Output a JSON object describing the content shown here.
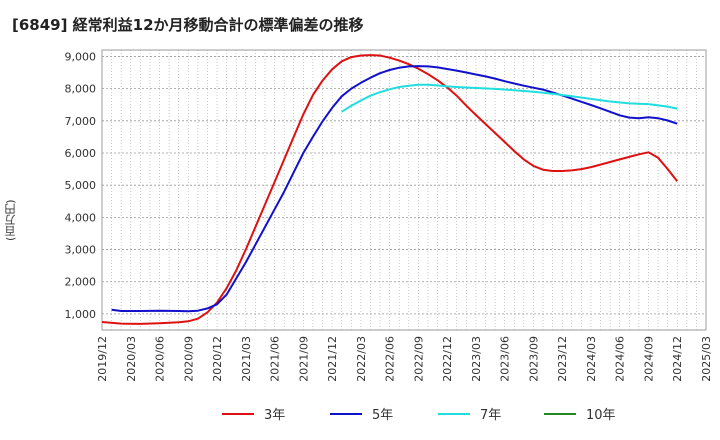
{
  "chart_data": {
    "type": "line",
    "title": "[6849]  経常利益12か月移動合計の標準偏差の推移",
    "ylabel": "(百万円)",
    "xlabel": "",
    "xlim": [
      "2019-12",
      "2025-03"
    ],
    "ylim": [
      500,
      9200
    ],
    "yticks": [
      1000,
      2000,
      3000,
      4000,
      5000,
      6000,
      7000,
      8000,
      9000
    ],
    "ytick_labels": [
      "1,000",
      "2,000",
      "3,000",
      "4,000",
      "5,000",
      "6,000",
      "7,000",
      "8,000",
      "9,000"
    ],
    "xtick_labels": [
      "2019/12",
      "2020/03",
      "2020/06",
      "2020/09",
      "2020/12",
      "2021/03",
      "2021/06",
      "2021/09",
      "2021/12",
      "2022/03",
      "2022/06",
      "2022/09",
      "2022/12",
      "2023/03",
      "2023/06",
      "2023/09",
      "2023/12",
      "2024/03",
      "2024/06",
      "2024/09",
      "2024/12",
      "2025/03"
    ],
    "grid": true,
    "legend_position": "bottom",
    "series": [
      {
        "name": "3年",
        "color": "#dd1111",
        "x": [
          "2019-12",
          "2020-02",
          "2020-04",
          "2020-06",
          "2020-08",
          "2020-09",
          "2020-10",
          "2020-11",
          "2020-12",
          "2021-01",
          "2021-02",
          "2021-03",
          "2021-04",
          "2021-05",
          "2021-06",
          "2021-07",
          "2021-08",
          "2021-09",
          "2021-10",
          "2021-11",
          "2021-12",
          "2022-01",
          "2022-02",
          "2022-03",
          "2022-04",
          "2022-05",
          "2022-06",
          "2022-07",
          "2022-08",
          "2022-09",
          "2022-10",
          "2022-11",
          "2022-12",
          "2023-01",
          "2023-02",
          "2023-03",
          "2023-04",
          "2023-05",
          "2023-06",
          "2023-07",
          "2023-08",
          "2023-09",
          "2023-10",
          "2023-11",
          "2023-12",
          "2024-01",
          "2024-02",
          "2024-03",
          "2024-04",
          "2024-05",
          "2024-06",
          "2024-07",
          "2024-08",
          "2024-09",
          "2024-10",
          "2024-11",
          "2024-12"
        ],
        "y": [
          750,
          700,
          690,
          710,
          740,
          770,
          850,
          1050,
          1350,
          1800,
          2350,
          3000,
          3700,
          4400,
          5100,
          5800,
          6500,
          7200,
          7800,
          8250,
          8600,
          8850,
          8980,
          9030,
          9040,
          9030,
          8960,
          8870,
          8760,
          8620,
          8450,
          8260,
          8040,
          7780,
          7470,
          7180,
          6900,
          6620,
          6340,
          6060,
          5800,
          5600,
          5480,
          5440,
          5440,
          5460,
          5500,
          5560,
          5640,
          5720,
          5800,
          5880,
          5960,
          6020,
          5850,
          5500,
          5120
        ]
      },
      {
        "name": "5年",
        "color": "#1111cc",
        "x": [
          "2020-01",
          "2020-02",
          "2020-04",
          "2020-06",
          "2020-08",
          "2020-09",
          "2020-10",
          "2020-11",
          "2020-12",
          "2021-01",
          "2021-02",
          "2021-03",
          "2021-04",
          "2021-05",
          "2021-06",
          "2021-07",
          "2021-08",
          "2021-09",
          "2021-10",
          "2021-11",
          "2021-12",
          "2022-01",
          "2022-02",
          "2022-03",
          "2022-04",
          "2022-05",
          "2022-06",
          "2022-07",
          "2022-08",
          "2022-09",
          "2022-10",
          "2022-11",
          "2022-12",
          "2023-01",
          "2023-02",
          "2023-03",
          "2023-04",
          "2023-05",
          "2023-06",
          "2023-07",
          "2023-08",
          "2023-09",
          "2023-10",
          "2023-11",
          "2023-12",
          "2024-01",
          "2024-02",
          "2024-03",
          "2024-04",
          "2024-05",
          "2024-06",
          "2024-07",
          "2024-08",
          "2024-09",
          "2024-10",
          "2024-11",
          "2024-12"
        ],
        "y": [
          1130,
          1090,
          1090,
          1100,
          1090,
          1080,
          1100,
          1170,
          1300,
          1600,
          2100,
          2600,
          3150,
          3700,
          4250,
          4800,
          5400,
          6000,
          6500,
          6980,
          7400,
          7760,
          8000,
          8180,
          8340,
          8480,
          8580,
          8650,
          8690,
          8700,
          8690,
          8660,
          8610,
          8560,
          8500,
          8440,
          8380,
          8310,
          8230,
          8160,
          8090,
          8030,
          7970,
          7880,
          7790,
          7690,
          7590,
          7490,
          7390,
          7280,
          7170,
          7100,
          7080,
          7110,
          7080,
          7010,
          6910
        ]
      },
      {
        "name": "7年",
        "color": "#22dddd",
        "x": [
          "2022-01",
          "2022-02",
          "2022-03",
          "2022-04",
          "2022-05",
          "2022-06",
          "2022-07",
          "2022-08",
          "2022-09",
          "2022-10",
          "2022-11",
          "2022-12",
          "2023-01",
          "2023-03",
          "2023-05",
          "2023-07",
          "2023-09",
          "2023-11",
          "2024-01",
          "2024-03",
          "2024-05",
          "2024-07",
          "2024-09",
          "2024-10",
          "2024-11",
          "2024-12"
        ],
        "y": [
          7280,
          7470,
          7630,
          7780,
          7890,
          7980,
          8050,
          8090,
          8120,
          8120,
          8100,
          8070,
          8050,
          8020,
          7990,
          7950,
          7900,
          7840,
          7760,
          7680,
          7600,
          7540,
          7520,
          7480,
          7440,
          7380
        ]
      },
      {
        "name": "10年",
        "color": "#228822",
        "x": [],
        "y": []
      }
    ]
  }
}
